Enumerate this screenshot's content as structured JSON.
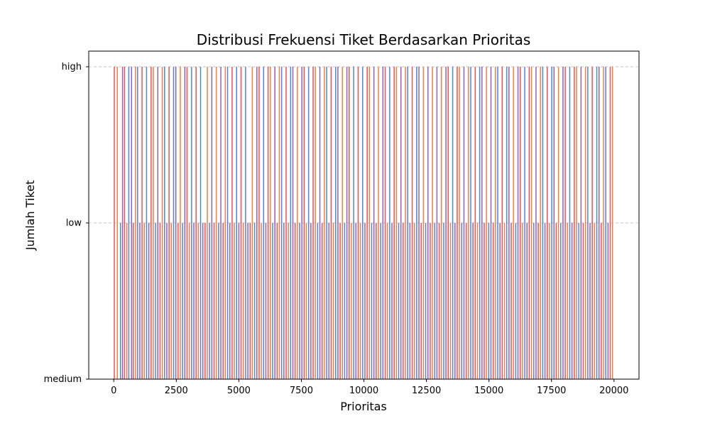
{
  "chart_data": {
    "type": "bar",
    "title": "Distribusi Frekuensi Tiket Berdasarkan Prioritas",
    "xlabel": "Prioritas",
    "ylabel": "Jumlah Tiket",
    "xlim": [
      -1000,
      21000
    ],
    "xticks": [
      0,
      2500,
      5000,
      7500,
      10000,
      12500,
      15000,
      17500,
      20000
    ],
    "xtick_labels": [
      "0",
      "2500",
      "5000",
      "7500",
      "10000",
      "12500",
      "15000",
      "17500",
      "20000"
    ],
    "yticks": [
      "medium",
      "low",
      "high"
    ],
    "grid": "y-dashed",
    "colors": [
      "#ff4b4b",
      "#f2803d",
      "#4a86e8",
      "#8e63b6"
    ],
    "bars": [
      {
        "x": 0,
        "y": "high"
      },
      {
        "x": 120,
        "y": "high"
      },
      {
        "x": 250,
        "y": "low"
      },
      {
        "x": 330,
        "y": "high"
      },
      {
        "x": 410,
        "y": "high"
      },
      {
        "x": 500,
        "y": "low"
      },
      {
        "x": 580,
        "y": "high"
      },
      {
        "x": 690,
        "y": "high"
      },
      {
        "x": 760,
        "y": "low"
      },
      {
        "x": 850,
        "y": "high"
      },
      {
        "x": 930,
        "y": "high"
      },
      {
        "x": 1020,
        "y": "low"
      },
      {
        "x": 1110,
        "y": "high"
      },
      {
        "x": 1200,
        "y": "low"
      },
      {
        "x": 1290,
        "y": "high"
      },
      {
        "x": 1380,
        "y": "low"
      },
      {
        "x": 1470,
        "y": "high"
      },
      {
        "x": 1560,
        "y": "high"
      },
      {
        "x": 1650,
        "y": "low"
      },
      {
        "x": 1740,
        "y": "high"
      },
      {
        "x": 1830,
        "y": "low"
      },
      {
        "x": 1920,
        "y": "high"
      },
      {
        "x": 2010,
        "y": "high"
      },
      {
        "x": 2100,
        "y": "low"
      },
      {
        "x": 2190,
        "y": "high"
      },
      {
        "x": 2280,
        "y": "low"
      },
      {
        "x": 2370,
        "y": "high"
      },
      {
        "x": 2460,
        "y": "high"
      },
      {
        "x": 2550,
        "y": "low"
      },
      {
        "x": 2640,
        "y": "high"
      },
      {
        "x": 2730,
        "y": "low"
      },
      {
        "x": 2820,
        "y": "high"
      },
      {
        "x": 2910,
        "y": "high"
      },
      {
        "x": 3000,
        "y": "low"
      },
      {
        "x": 3090,
        "y": "high"
      },
      {
        "x": 3180,
        "y": "low"
      },
      {
        "x": 3270,
        "y": "high"
      },
      {
        "x": 3360,
        "y": "low"
      },
      {
        "x": 3450,
        "y": "high"
      },
      {
        "x": 3540,
        "y": "low"
      },
      {
        "x": 3630,
        "y": "low"
      },
      {
        "x": 3720,
        "y": "high"
      },
      {
        "x": 3810,
        "y": "low"
      },
      {
        "x": 3900,
        "y": "high"
      },
      {
        "x": 3990,
        "y": "low"
      },
      {
        "x": 4080,
        "y": "high"
      },
      {
        "x": 4170,
        "y": "low"
      },
      {
        "x": 4260,
        "y": "high"
      },
      {
        "x": 4350,
        "y": "low"
      },
      {
        "x": 4440,
        "y": "high"
      },
      {
        "x": 4530,
        "y": "high"
      },
      {
        "x": 4620,
        "y": "low"
      },
      {
        "x": 4710,
        "y": "high"
      },
      {
        "x": 4800,
        "y": "low"
      },
      {
        "x": 4890,
        "y": "high"
      },
      {
        "x": 4980,
        "y": "low"
      },
      {
        "x": 5070,
        "y": "high"
      },
      {
        "x": 5160,
        "y": "low"
      },
      {
        "x": 5250,
        "y": "high"
      },
      {
        "x": 5340,
        "y": "low"
      },
      {
        "x": 5430,
        "y": "low"
      },
      {
        "x": 5520,
        "y": "high"
      },
      {
        "x": 5610,
        "y": "low"
      },
      {
        "x": 5700,
        "y": "high"
      },
      {
        "x": 5790,
        "y": "high"
      },
      {
        "x": 5880,
        "y": "low"
      },
      {
        "x": 5970,
        "y": "high"
      },
      {
        "x": 6060,
        "y": "low"
      },
      {
        "x": 6150,
        "y": "high"
      },
      {
        "x": 6240,
        "y": "high"
      },
      {
        "x": 6330,
        "y": "low"
      },
      {
        "x": 6420,
        "y": "high"
      },
      {
        "x": 6510,
        "y": "low"
      },
      {
        "x": 6600,
        "y": "high"
      },
      {
        "x": 6690,
        "y": "high"
      },
      {
        "x": 6780,
        "y": "low"
      },
      {
        "x": 6870,
        "y": "high"
      },
      {
        "x": 6960,
        "y": "low"
      },
      {
        "x": 7050,
        "y": "high"
      },
      {
        "x": 7140,
        "y": "high"
      },
      {
        "x": 7230,
        "y": "low"
      },
      {
        "x": 7320,
        "y": "high"
      },
      {
        "x": 7410,
        "y": "low"
      },
      {
        "x": 7500,
        "y": "high"
      },
      {
        "x": 7590,
        "y": "high"
      },
      {
        "x": 7680,
        "y": "low"
      },
      {
        "x": 7770,
        "y": "high"
      },
      {
        "x": 7860,
        "y": "low"
      },
      {
        "x": 7950,
        "y": "high"
      },
      {
        "x": 8040,
        "y": "high"
      },
      {
        "x": 8130,
        "y": "low"
      },
      {
        "x": 8220,
        "y": "high"
      },
      {
        "x": 8310,
        "y": "low"
      },
      {
        "x": 8400,
        "y": "high"
      },
      {
        "x": 8490,
        "y": "high"
      },
      {
        "x": 8580,
        "y": "low"
      },
      {
        "x": 8670,
        "y": "high"
      },
      {
        "x": 8760,
        "y": "low"
      },
      {
        "x": 8850,
        "y": "high"
      },
      {
        "x": 8940,
        "y": "high"
      },
      {
        "x": 9030,
        "y": "low"
      },
      {
        "x": 9120,
        "y": "high"
      },
      {
        "x": 9210,
        "y": "low"
      },
      {
        "x": 9300,
        "y": "high"
      },
      {
        "x": 9390,
        "y": "high"
      },
      {
        "x": 9480,
        "y": "low"
      },
      {
        "x": 9570,
        "y": "high"
      },
      {
        "x": 9660,
        "y": "low"
      },
      {
        "x": 9750,
        "y": "high"
      },
      {
        "x": 9840,
        "y": "low"
      },
      {
        "x": 9930,
        "y": "high"
      },
      {
        "x": 10020,
        "y": "low"
      },
      {
        "x": 10110,
        "y": "high"
      },
      {
        "x": 10200,
        "y": "high"
      },
      {
        "x": 10290,
        "y": "low"
      },
      {
        "x": 10380,
        "y": "high"
      },
      {
        "x": 10470,
        "y": "low"
      },
      {
        "x": 10560,
        "y": "high"
      },
      {
        "x": 10650,
        "y": "low"
      },
      {
        "x": 10740,
        "y": "high"
      },
      {
        "x": 10830,
        "y": "high"
      },
      {
        "x": 10920,
        "y": "low"
      },
      {
        "x": 11010,
        "y": "high"
      },
      {
        "x": 11100,
        "y": "low"
      },
      {
        "x": 11190,
        "y": "high"
      },
      {
        "x": 11280,
        "y": "high"
      },
      {
        "x": 11370,
        "y": "low"
      },
      {
        "x": 11460,
        "y": "high"
      },
      {
        "x": 11550,
        "y": "low"
      },
      {
        "x": 11640,
        "y": "high"
      },
      {
        "x": 11730,
        "y": "high"
      },
      {
        "x": 11820,
        "y": "low"
      },
      {
        "x": 11910,
        "y": "high"
      },
      {
        "x": 12000,
        "y": "low"
      },
      {
        "x": 12090,
        "y": "high"
      },
      {
        "x": 12180,
        "y": "high"
      },
      {
        "x": 12270,
        "y": "low"
      },
      {
        "x": 12360,
        "y": "high"
      },
      {
        "x": 12450,
        "y": "low"
      },
      {
        "x": 12540,
        "y": "high"
      },
      {
        "x": 12630,
        "y": "low"
      },
      {
        "x": 12720,
        "y": "high"
      },
      {
        "x": 12810,
        "y": "low"
      },
      {
        "x": 12900,
        "y": "high"
      },
      {
        "x": 12990,
        "y": "low"
      },
      {
        "x": 13080,
        "y": "high"
      },
      {
        "x": 13170,
        "y": "low"
      },
      {
        "x": 13260,
        "y": "high"
      },
      {
        "x": 13350,
        "y": "high"
      },
      {
        "x": 13440,
        "y": "low"
      },
      {
        "x": 13530,
        "y": "high"
      },
      {
        "x": 13620,
        "y": "low"
      },
      {
        "x": 13710,
        "y": "high"
      },
      {
        "x": 13800,
        "y": "high"
      },
      {
        "x": 13890,
        "y": "low"
      },
      {
        "x": 13980,
        "y": "high"
      },
      {
        "x": 14070,
        "y": "low"
      },
      {
        "x": 14160,
        "y": "high"
      },
      {
        "x": 14250,
        "y": "high"
      },
      {
        "x": 14340,
        "y": "low"
      },
      {
        "x": 14430,
        "y": "high"
      },
      {
        "x": 14520,
        "y": "low"
      },
      {
        "x": 14610,
        "y": "high"
      },
      {
        "x": 14700,
        "y": "high"
      },
      {
        "x": 14790,
        "y": "low"
      },
      {
        "x": 14880,
        "y": "high"
      },
      {
        "x": 14970,
        "y": "low"
      },
      {
        "x": 15060,
        "y": "high"
      },
      {
        "x": 15150,
        "y": "low"
      },
      {
        "x": 15240,
        "y": "high"
      },
      {
        "x": 15330,
        "y": "high"
      },
      {
        "x": 15420,
        "y": "low"
      },
      {
        "x": 15510,
        "y": "high"
      },
      {
        "x": 15600,
        "y": "low"
      },
      {
        "x": 15690,
        "y": "high"
      },
      {
        "x": 15780,
        "y": "high"
      },
      {
        "x": 15870,
        "y": "low"
      },
      {
        "x": 15960,
        "y": "high"
      },
      {
        "x": 16050,
        "y": "low"
      },
      {
        "x": 16140,
        "y": "high"
      },
      {
        "x": 16230,
        "y": "high"
      },
      {
        "x": 16320,
        "y": "low"
      },
      {
        "x": 16410,
        "y": "high"
      },
      {
        "x": 16500,
        "y": "low"
      },
      {
        "x": 16590,
        "y": "high"
      },
      {
        "x": 16680,
        "y": "high"
      },
      {
        "x": 16770,
        "y": "low"
      },
      {
        "x": 16860,
        "y": "high"
      },
      {
        "x": 16950,
        "y": "low"
      },
      {
        "x": 17040,
        "y": "high"
      },
      {
        "x": 17130,
        "y": "high"
      },
      {
        "x": 17220,
        "y": "low"
      },
      {
        "x": 17310,
        "y": "high"
      },
      {
        "x": 17400,
        "y": "low"
      },
      {
        "x": 17490,
        "y": "high"
      },
      {
        "x": 17580,
        "y": "high"
      },
      {
        "x": 17670,
        "y": "low"
      },
      {
        "x": 17760,
        "y": "high"
      },
      {
        "x": 17850,
        "y": "low"
      },
      {
        "x": 17940,
        "y": "high"
      },
      {
        "x": 18030,
        "y": "high"
      },
      {
        "x": 18120,
        "y": "low"
      },
      {
        "x": 18210,
        "y": "high"
      },
      {
        "x": 18300,
        "y": "low"
      },
      {
        "x": 18390,
        "y": "high"
      },
      {
        "x": 18480,
        "y": "high"
      },
      {
        "x": 18570,
        "y": "low"
      },
      {
        "x": 18660,
        "y": "high"
      },
      {
        "x": 18750,
        "y": "low"
      },
      {
        "x": 18840,
        "y": "high"
      },
      {
        "x": 18930,
        "y": "high"
      },
      {
        "x": 19020,
        "y": "low"
      },
      {
        "x": 19110,
        "y": "high"
      },
      {
        "x": 19200,
        "y": "low"
      },
      {
        "x": 19290,
        "y": "high"
      },
      {
        "x": 19380,
        "y": "high"
      },
      {
        "x": 19470,
        "y": "low"
      },
      {
        "x": 19560,
        "y": "high"
      },
      {
        "x": 19650,
        "y": "high"
      },
      {
        "x": 19740,
        "y": "low"
      },
      {
        "x": 19830,
        "y": "high"
      },
      {
        "x": 19920,
        "y": "high"
      }
    ]
  }
}
